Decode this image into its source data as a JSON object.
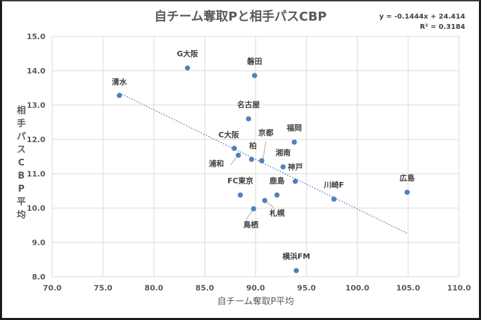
{
  "chart_data": {
    "type": "scatter",
    "title": "自チーム奪取Pと相手パスCBP",
    "xlabel": "自チーム奪取P平均",
    "ylabel": "相手パスCBP平均",
    "xlim": [
      70.0,
      110.0
    ],
    "ylim": [
      8.0,
      15.0
    ],
    "x_ticks": [
      "70.0",
      "75.0",
      "80.0",
      "85.0",
      "90.0",
      "95.0",
      "100.0",
      "105.0",
      "110.0"
    ],
    "y_ticks": [
      "8.0",
      "9.0",
      "10.0",
      "11.0",
      "12.0",
      "13.0",
      "14.0",
      "15.0"
    ],
    "grid": true,
    "marker_color": "#4f81bd",
    "trendline": {
      "type": "linear",
      "slope": -0.1444,
      "intercept": 24.414,
      "equation_label": "y = -0.1444x + 24.414",
      "r2_label": "R² = 0.3184",
      "color": "#4f81bd",
      "style": "dotted"
    },
    "points": [
      {
        "label": "清水",
        "x": 76.6,
        "y": 13.28
      },
      {
        "label": "G大阪",
        "x": 83.3,
        "y": 14.08
      },
      {
        "label": "磐田",
        "x": 89.9,
        "y": 13.86
      },
      {
        "label": "名古屋",
        "x": 89.3,
        "y": 12.6
      },
      {
        "label": "C大阪",
        "x": 87.9,
        "y": 11.74
      },
      {
        "label": "浦和",
        "x": 88.3,
        "y": 11.54
      },
      {
        "label": "柏",
        "x": 89.6,
        "y": 11.42
      },
      {
        "label": "京都",
        "x": 90.6,
        "y": 11.38
      },
      {
        "label": "福岡",
        "x": 93.8,
        "y": 11.92
      },
      {
        "label": "湘南",
        "x": 92.7,
        "y": 11.2
      },
      {
        "label": "神戸",
        "x": 93.9,
        "y": 10.78
      },
      {
        "label": "FC東京",
        "x": 88.5,
        "y": 10.38
      },
      {
        "label": "鹿島",
        "x": 92.1,
        "y": 10.38
      },
      {
        "label": "札幌",
        "x": 90.9,
        "y": 10.22
      },
      {
        "label": "鳥栖",
        "x": 89.8,
        "y": 9.98
      },
      {
        "label": "川崎F",
        "x": 97.7,
        "y": 10.26
      },
      {
        "label": "広島",
        "x": 104.9,
        "y": 10.46
      },
      {
        "label": "横浜FM",
        "x": 94.0,
        "y": 8.18
      }
    ]
  }
}
